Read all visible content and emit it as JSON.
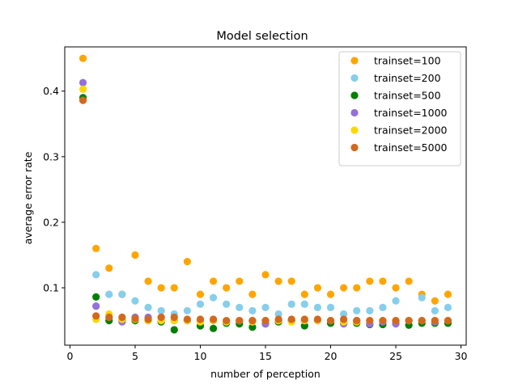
{
  "chart_data": {
    "type": "scatter",
    "title": "Model selection",
    "xlabel": "number of perception",
    "ylabel": "average error rate",
    "xlim": [
      -0.4,
      30.4
    ],
    "ylim": [
      0.0125,
      0.4675
    ],
    "xticks": [
      0,
      5,
      10,
      15,
      20,
      25,
      30
    ],
    "yticks": [
      0.1,
      0.2,
      0.3,
      0.4
    ],
    "ytick_labels": [
      "0.1",
      "0.2",
      "0.3",
      "0.4"
    ],
    "grid": false,
    "legend_position": "top-right",
    "x": [
      1,
      2,
      3,
      4,
      5,
      6,
      7,
      8,
      9,
      10,
      11,
      12,
      13,
      14,
      15,
      16,
      17,
      18,
      19,
      20,
      21,
      22,
      23,
      24,
      25,
      26,
      27,
      28,
      29
    ],
    "series": [
      {
        "name": "trainset=100",
        "color": "#ffa500",
        "values": [
          0.45,
          0.16,
          0.13,
          0.09,
          0.15,
          0.11,
          0.1,
          0.1,
          0.14,
          0.09,
          0.11,
          0.1,
          0.11,
          0.09,
          0.12,
          0.11,
          0.11,
          0.09,
          0.1,
          0.09,
          0.1,
          0.1,
          0.11,
          0.11,
          0.1,
          0.11,
          0.09,
          0.08,
          0.09
        ]
      },
      {
        "name": "trainset=200",
        "color": "#87ceeb",
        "values": [
          0.39,
          0.12,
          0.09,
          0.09,
          0.08,
          0.07,
          0.065,
          0.06,
          0.065,
          0.075,
          0.085,
          0.075,
          0.07,
          0.065,
          0.07,
          0.06,
          0.075,
          0.075,
          0.07,
          0.07,
          0.06,
          0.065,
          0.065,
          0.07,
          0.08,
          0.05,
          0.085,
          0.065,
          0.07
        ]
      },
      {
        "name": "trainset=500",
        "color": "#008000",
        "values": [
          0.39,
          0.086,
          0.05,
          0.05,
          0.05,
          0.05,
          0.048,
          0.036,
          0.05,
          0.042,
          0.038,
          0.046,
          0.045,
          0.04,
          0.045,
          0.048,
          0.05,
          0.042,
          0.05,
          0.046,
          0.046,
          0.046,
          0.044,
          0.044,
          0.046,
          0.043,
          0.046,
          0.046,
          0.046
        ]
      },
      {
        "name": "trainset=1000",
        "color": "#9370db",
        "values": [
          0.413,
          0.072,
          0.055,
          0.048,
          0.055,
          0.055,
          0.055,
          0.05,
          0.05,
          0.05,
          0.05,
          0.048,
          0.05,
          0.05,
          0.045,
          0.05,
          0.05,
          0.05,
          0.05,
          0.05,
          0.045,
          0.05,
          0.045,
          0.048,
          0.045,
          0.05,
          0.05,
          0.048,
          0.05
        ]
      },
      {
        "name": "trainset=2000",
        "color": "#ffd700",
        "values": [
          0.403,
          0.052,
          0.06,
          0.052,
          0.052,
          0.05,
          0.05,
          0.05,
          0.05,
          0.048,
          0.05,
          0.048,
          0.05,
          0.048,
          0.05,
          0.05,
          0.048,
          0.05,
          0.05,
          0.05,
          0.048,
          0.048,
          0.05,
          0.05,
          0.05,
          0.05,
          0.05,
          0.05,
          0.05
        ]
      },
      {
        "name": "trainset=5000",
        "color": "#d2691e",
        "values": [
          0.386,
          0.057,
          0.055,
          0.055,
          0.053,
          0.052,
          0.055,
          0.055,
          0.052,
          0.052,
          0.052,
          0.05,
          0.05,
          0.05,
          0.05,
          0.052,
          0.052,
          0.052,
          0.052,
          0.05,
          0.052,
          0.05,
          0.05,
          0.05,
          0.05,
          0.05,
          0.05,
          0.05,
          0.05
        ]
      }
    ]
  }
}
